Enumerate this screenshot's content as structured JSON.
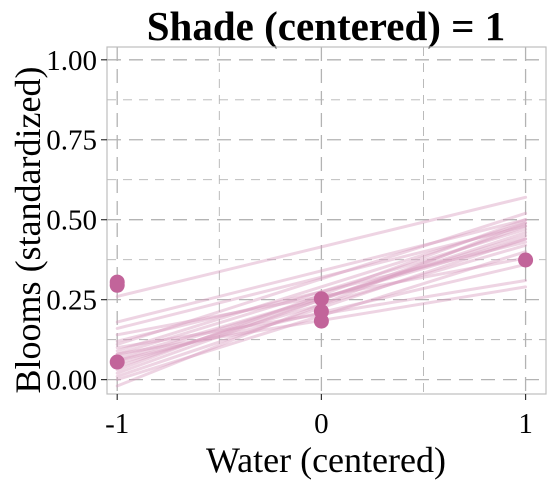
{
  "chart_data": {
    "type": "line",
    "title": "Shade (centered) = 1",
    "xlabel": "Water (centered)",
    "ylabel": "Blooms (standardized)",
    "xlim": [
      -1.05,
      1.1
    ],
    "ylim": [
      -0.045,
      1.04
    ],
    "x_ticks": [
      -1,
      0,
      1
    ],
    "x_tick_labels": [
      "-1",
      "0",
      "1"
    ],
    "y_ticks": [
      0,
      0.25,
      0.5,
      0.75,
      1
    ],
    "y_tick_labels": [
      "0.00",
      "0.25",
      "0.50",
      "0.75",
      "1.00"
    ],
    "grid": true,
    "legend": "none",
    "colors": {
      "points": "#c2649a",
      "lines": "#d9a0c0",
      "grid": "#b3b3b3",
      "frame": "#bdbdbd"
    },
    "points": [
      {
        "x": -1,
        "y": 0.305
      },
      {
        "x": -1,
        "y": 0.295
      },
      {
        "x": -1,
        "y": 0.055
      },
      {
        "x": 0,
        "y": 0.253
      },
      {
        "x": 0,
        "y": 0.213
      },
      {
        "x": 0,
        "y": 0.183
      },
      {
        "x": 1,
        "y": 0.374
      }
    ],
    "posterior_lines": [
      {
        "x": [
          -1,
          1
        ],
        "y": [
          0.26,
          0.57
        ]
      },
      {
        "x": [
          -1,
          1
        ],
        "y": [
          0.18,
          0.5
        ]
      },
      {
        "x": [
          -1,
          1
        ],
        "y": [
          0.16,
          0.48
        ]
      },
      {
        "x": [
          -1,
          1
        ],
        "y": [
          0.11,
          0.52
        ]
      },
      {
        "x": [
          -1,
          1
        ],
        "y": [
          0.09,
          0.49
        ]
      },
      {
        "x": [
          -1,
          1
        ],
        "y": [
          0.08,
          0.47
        ]
      },
      {
        "x": [
          -1,
          1
        ],
        "y": [
          0.07,
          0.44
        ]
      },
      {
        "x": [
          -1,
          1
        ],
        "y": [
          0.06,
          0.45
        ]
      },
      {
        "x": [
          -1,
          1
        ],
        "y": [
          0.05,
          0.42
        ]
      },
      {
        "x": [
          -1,
          1
        ],
        "y": [
          0.04,
          0.46
        ]
      },
      {
        "x": [
          -1,
          1
        ],
        "y": [
          0.03,
          0.5
        ]
      },
      {
        "x": [
          -1,
          1
        ],
        "y": [
          0.02,
          0.48
        ]
      },
      {
        "x": [
          -1,
          1
        ],
        "y": [
          0.01,
          0.44
        ]
      },
      {
        "x": [
          -1,
          1
        ],
        "y": [
          0.0,
          0.4
        ]
      },
      {
        "x": [
          -1,
          1
        ],
        "y": [
          0.06,
          0.36
        ]
      },
      {
        "x": [
          -1,
          1
        ],
        "y": [
          0.1,
          0.31
        ]
      },
      {
        "x": [
          -1,
          1
        ],
        "y": [
          -0.02,
          0.49
        ]
      },
      {
        "x": [
          -1,
          1
        ],
        "y": [
          0.12,
          0.43
        ]
      },
      {
        "x": [
          -1,
          1
        ],
        "y": [
          0.08,
          0.29
        ]
      },
      {
        "x": [
          -1,
          1
        ],
        "y": [
          0.14,
          0.38
        ]
      }
    ]
  }
}
